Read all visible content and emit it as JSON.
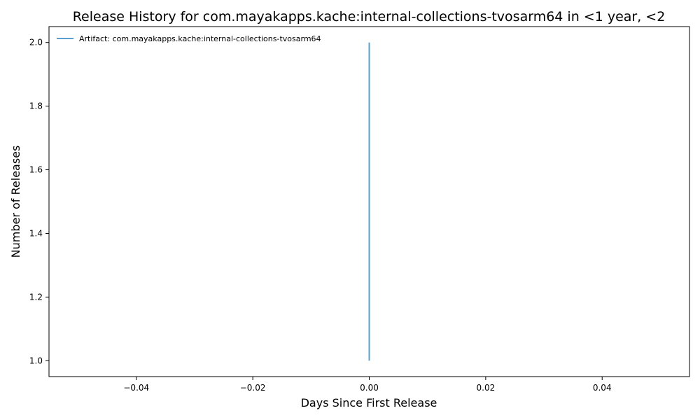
{
  "chart_data": {
    "type": "line",
    "title": "Release History for com.mayakapps.kache:internal-collections-tvosarm64 in <1 year, <2",
    "xlabel": "Days Since First Release",
    "ylabel": "Number of Releases",
    "xlim": [
      -0.055,
      0.055
    ],
    "ylim": [
      0.95,
      2.05
    ],
    "xticks": [
      -0.04,
      -0.02,
      0.0,
      0.02,
      0.04
    ],
    "xtick_labels": [
      "−0.04",
      "−0.02",
      "0.00",
      "0.02",
      "0.04"
    ],
    "yticks": [
      1.0,
      1.2,
      1.4,
      1.6,
      1.8,
      2.0
    ],
    "ytick_labels": [
      "1.0",
      "1.2",
      "1.4",
      "1.6",
      "1.8",
      "2.0"
    ],
    "grid": false,
    "legend_position": "top-left",
    "series": [
      {
        "name": "Artifact: com.mayakapps.kache:internal-collections-tvosarm64",
        "color": "#5b9fd0",
        "x": [
          0.0,
          0.0
        ],
        "y": [
          1,
          2
        ]
      }
    ]
  }
}
